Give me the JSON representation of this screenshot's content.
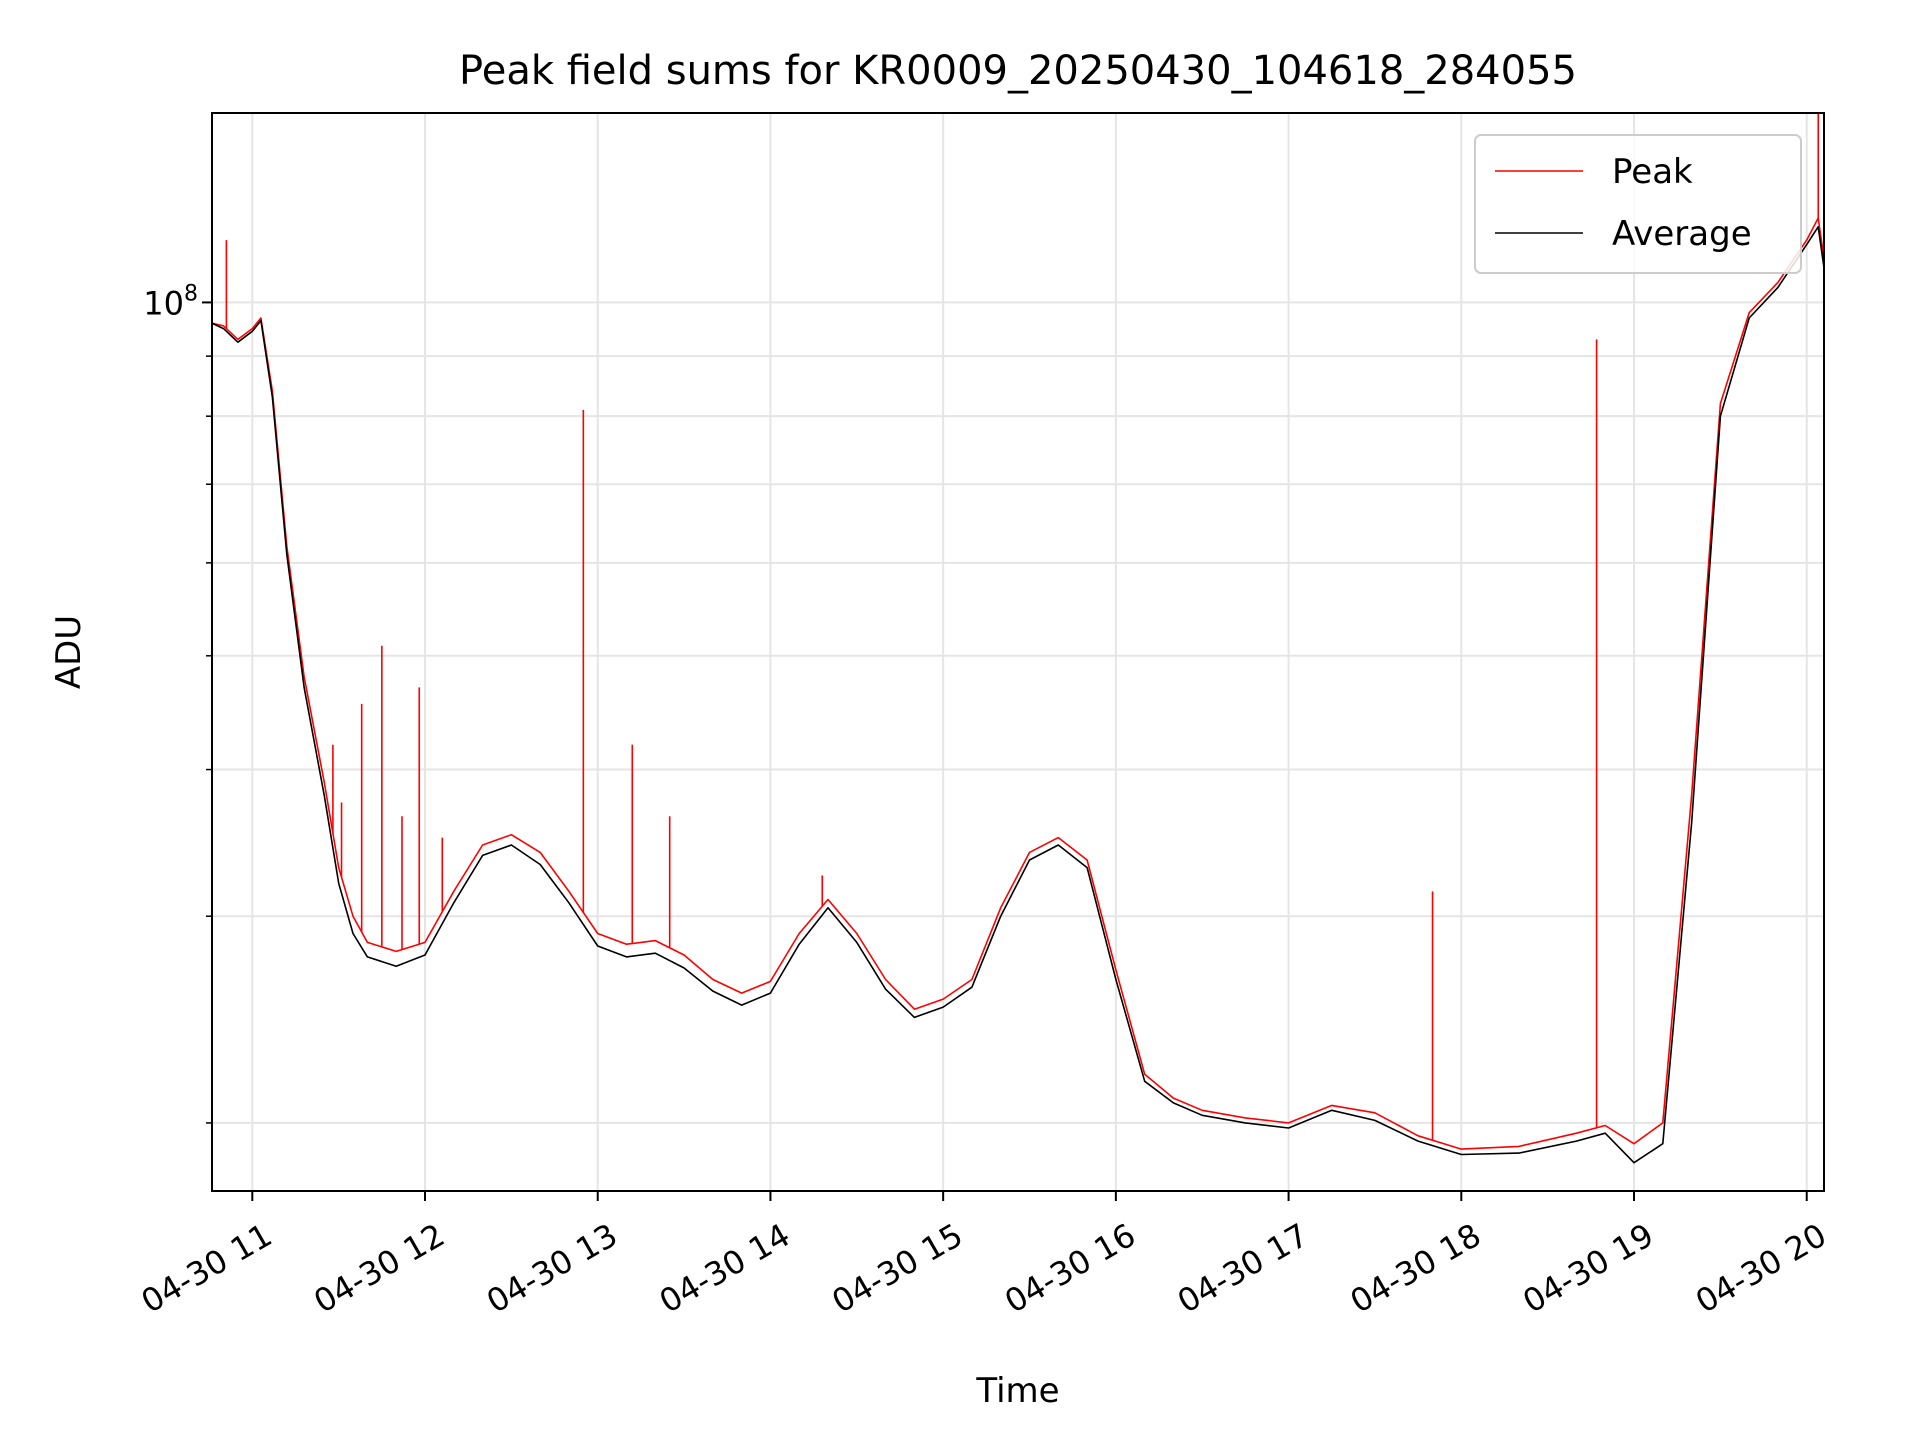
{
  "chart_data": {
    "type": "line",
    "title": "Peak field sums for KR0009_20250430_104618_284055",
    "xlabel": "Time",
    "ylabel": "ADU",
    "yscale": "log",
    "grid": true,
    "legend_position": "top-right",
    "xlim": [
      "2025-04-30 10:46",
      "2025-04-30 20:06"
    ],
    "ylim": [
      17500000,
      145000000
    ],
    "x_ticks": [
      {
        "value": "2025-04-30 11:00",
        "label": "04-30 11"
      },
      {
        "value": "2025-04-30 12:00",
        "label": "04-30 12"
      },
      {
        "value": "2025-04-30 13:00",
        "label": "04-30 13"
      },
      {
        "value": "2025-04-30 14:00",
        "label": "04-30 14"
      },
      {
        "value": "2025-04-30 15:00",
        "label": "04-30 15"
      },
      {
        "value": "2025-04-30 16:00",
        "label": "04-30 16"
      },
      {
        "value": "2025-04-30 17:00",
        "label": "04-30 17"
      },
      {
        "value": "2025-04-30 18:00",
        "label": "04-30 18"
      },
      {
        "value": "2025-04-30 19:00",
        "label": "04-30 19"
      },
      {
        "value": "2025-04-30 20:00",
        "label": "04-30 20"
      }
    ],
    "y_major_ticks": [
      {
        "value": 100000000,
        "label_base": "10",
        "label_exp": "8"
      }
    ],
    "y_minor_ticks": [
      20000000,
      30000000,
      40000000,
      50000000,
      60000000,
      70000000,
      80000000,
      90000000
    ],
    "series": [
      {
        "name": "Peak",
        "color": "#ff0000",
        "points": [
          [
            "2025-04-30 10:46",
            96000000
          ],
          [
            "2025-04-30 10:50",
            95500000
          ],
          [
            "2025-04-30 10:55",
            93000000
          ],
          [
            "2025-04-30 11:00",
            95000000
          ],
          [
            "2025-04-30 11:03",
            97000000
          ],
          [
            "2025-04-30 11:07",
            84000000
          ],
          [
            "2025-04-30 11:12",
            62000000
          ],
          [
            "2025-04-30 11:18",
            48000000
          ],
          [
            "2025-04-30 11:25",
            39000000
          ],
          [
            "2025-04-30 11:30",
            33000000
          ],
          [
            "2025-04-30 11:35",
            30000000
          ],
          [
            "2025-04-30 11:40",
            28500000
          ],
          [
            "2025-04-30 11:50",
            28000000
          ],
          [
            "2025-04-30 12:00",
            28500000
          ],
          [
            "2025-04-30 12:10",
            31500000
          ],
          [
            "2025-04-30 12:20",
            34500000
          ],
          [
            "2025-04-30 12:30",
            35200000
          ],
          [
            "2025-04-30 12:40",
            34000000
          ],
          [
            "2025-04-30 12:50",
            31500000
          ],
          [
            "2025-04-30 13:00",
            29000000
          ],
          [
            "2025-04-30 13:10",
            28400000
          ],
          [
            "2025-04-30 13:20",
            28600000
          ],
          [
            "2025-04-30 13:30",
            27800000
          ],
          [
            "2025-04-30 13:40",
            26500000
          ],
          [
            "2025-04-30 13:50",
            25800000
          ],
          [
            "2025-04-30 14:00",
            26400000
          ],
          [
            "2025-04-30 14:10",
            29000000
          ],
          [
            "2025-04-30 14:20",
            31000000
          ],
          [
            "2025-04-30 14:30",
            29000000
          ],
          [
            "2025-04-30 14:40",
            26500000
          ],
          [
            "2025-04-30 14:50",
            25000000
          ],
          [
            "2025-04-30 15:00",
            25500000
          ],
          [
            "2025-04-30 15:10",
            26500000
          ],
          [
            "2025-04-30 15:20",
            30500000
          ],
          [
            "2025-04-30 15:30",
            34000000
          ],
          [
            "2025-04-30 15:40",
            35000000
          ],
          [
            "2025-04-30 15:50",
            33500000
          ],
          [
            "2025-04-30 16:00",
            27000000
          ],
          [
            "2025-04-30 16:10",
            22000000
          ],
          [
            "2025-04-30 16:20",
            21000000
          ],
          [
            "2025-04-30 16:30",
            20500000
          ],
          [
            "2025-04-30 16:45",
            20200000
          ],
          [
            "2025-04-30 17:00",
            20000000
          ],
          [
            "2025-04-30 17:15",
            20700000
          ],
          [
            "2025-04-30 17:30",
            20400000
          ],
          [
            "2025-04-30 17:45",
            19500000
          ],
          [
            "2025-04-30 18:00",
            19000000
          ],
          [
            "2025-04-30 18:20",
            19100000
          ],
          [
            "2025-04-30 18:40",
            19600000
          ],
          [
            "2025-04-30 18:50",
            19900000
          ],
          [
            "2025-04-30 19:00",
            19200000
          ],
          [
            "2025-04-30 19:10",
            20000000
          ],
          [
            "2025-04-30 19:20",
            38000000
          ],
          [
            "2025-04-30 19:30",
            82000000
          ],
          [
            "2025-04-30 19:40",
            98000000
          ],
          [
            "2025-04-30 19:50",
            104000000
          ],
          [
            "2025-04-30 20:00",
            113000000
          ],
          [
            "2025-04-30 20:04",
            118000000
          ],
          [
            "2025-04-30 20:06",
            109000000
          ]
        ],
        "spikes": [
          [
            "2025-04-30 10:51",
            113000000
          ],
          [
            "2025-04-30 11:28",
            42000000
          ],
          [
            "2025-04-30 11:31",
            37500000
          ],
          [
            "2025-04-30 11:38",
            45500000
          ],
          [
            "2025-04-30 11:45",
            51000000
          ],
          [
            "2025-04-30 11:52",
            36500000
          ],
          [
            "2025-04-30 11:58",
            47000000
          ],
          [
            "2025-04-30 12:06",
            35000000
          ],
          [
            "2025-04-30 12:55",
            81000000
          ],
          [
            "2025-04-30 13:12",
            42000000
          ],
          [
            "2025-04-30 13:25",
            36500000
          ],
          [
            "2025-04-30 14:18",
            32500000
          ],
          [
            "2025-04-30 17:50",
            31500000
          ],
          [
            "2025-04-30 18:47",
            93000000
          ],
          [
            "2025-04-30 20:04",
            145000000
          ]
        ]
      },
      {
        "name": "Average",
        "color": "#000000",
        "points": [
          [
            "2025-04-30 10:46",
            96000000
          ],
          [
            "2025-04-30 10:50",
            95000000
          ],
          [
            "2025-04-30 10:55",
            92500000
          ],
          [
            "2025-04-30 11:00",
            94500000
          ],
          [
            "2025-04-30 11:03",
            96500000
          ],
          [
            "2025-04-30 11:07",
            83000000
          ],
          [
            "2025-04-30 11:12",
            61000000
          ],
          [
            "2025-04-30 11:18",
            47000000
          ],
          [
            "2025-04-30 11:25",
            38000000
          ],
          [
            "2025-04-30 11:30",
            32000000
          ],
          [
            "2025-04-30 11:35",
            29000000
          ],
          [
            "2025-04-30 11:40",
            27700000
          ],
          [
            "2025-04-30 11:50",
            27200000
          ],
          [
            "2025-04-30 12:00",
            27800000
          ],
          [
            "2025-04-30 12:10",
            30800000
          ],
          [
            "2025-04-30 12:20",
            33800000
          ],
          [
            "2025-04-30 12:30",
            34500000
          ],
          [
            "2025-04-30 12:40",
            33200000
          ],
          [
            "2025-04-30 12:50",
            30800000
          ],
          [
            "2025-04-30 13:00",
            28300000
          ],
          [
            "2025-04-30 13:10",
            27700000
          ],
          [
            "2025-04-30 13:20",
            27900000
          ],
          [
            "2025-04-30 13:30",
            27100000
          ],
          [
            "2025-04-30 13:40",
            25900000
          ],
          [
            "2025-04-30 13:50",
            25200000
          ],
          [
            "2025-04-30 14:00",
            25800000
          ],
          [
            "2025-04-30 14:10",
            28400000
          ],
          [
            "2025-04-30 14:20",
            30500000
          ],
          [
            "2025-04-30 14:30",
            28500000
          ],
          [
            "2025-04-30 14:40",
            26000000
          ],
          [
            "2025-04-30 14:50",
            24600000
          ],
          [
            "2025-04-30 15:00",
            25100000
          ],
          [
            "2025-04-30 15:10",
            26100000
          ],
          [
            "2025-04-30 15:20",
            30000000
          ],
          [
            "2025-04-30 15:30",
            33500000
          ],
          [
            "2025-04-30 15:40",
            34500000
          ],
          [
            "2025-04-30 15:50",
            33000000
          ],
          [
            "2025-04-30 16:00",
            26500000
          ],
          [
            "2025-04-30 16:10",
            21700000
          ],
          [
            "2025-04-30 16:20",
            20800000
          ],
          [
            "2025-04-30 16:30",
            20300000
          ],
          [
            "2025-04-30 16:45",
            20000000
          ],
          [
            "2025-04-30 17:00",
            19800000
          ],
          [
            "2025-04-30 17:15",
            20500000
          ],
          [
            "2025-04-30 17:30",
            20100000
          ],
          [
            "2025-04-30 17:45",
            19300000
          ],
          [
            "2025-04-30 18:00",
            18800000
          ],
          [
            "2025-04-30 18:20",
            18850000
          ],
          [
            "2025-04-30 18:40",
            19300000
          ],
          [
            "2025-04-30 18:50",
            19600000
          ],
          [
            "2025-04-30 19:00",
            18500000
          ],
          [
            "2025-04-30 19:10",
            19200000
          ],
          [
            "2025-04-30 19:20",
            36000000
          ],
          [
            "2025-04-30 19:30",
            80000000
          ],
          [
            "2025-04-30 19:40",
            97000000
          ],
          [
            "2025-04-30 19:50",
            103000000
          ],
          [
            "2025-04-30 20:00",
            112000000
          ],
          [
            "2025-04-30 20:04",
            116000000
          ],
          [
            "2025-04-30 20:06",
            107000000
          ]
        ]
      }
    ]
  }
}
